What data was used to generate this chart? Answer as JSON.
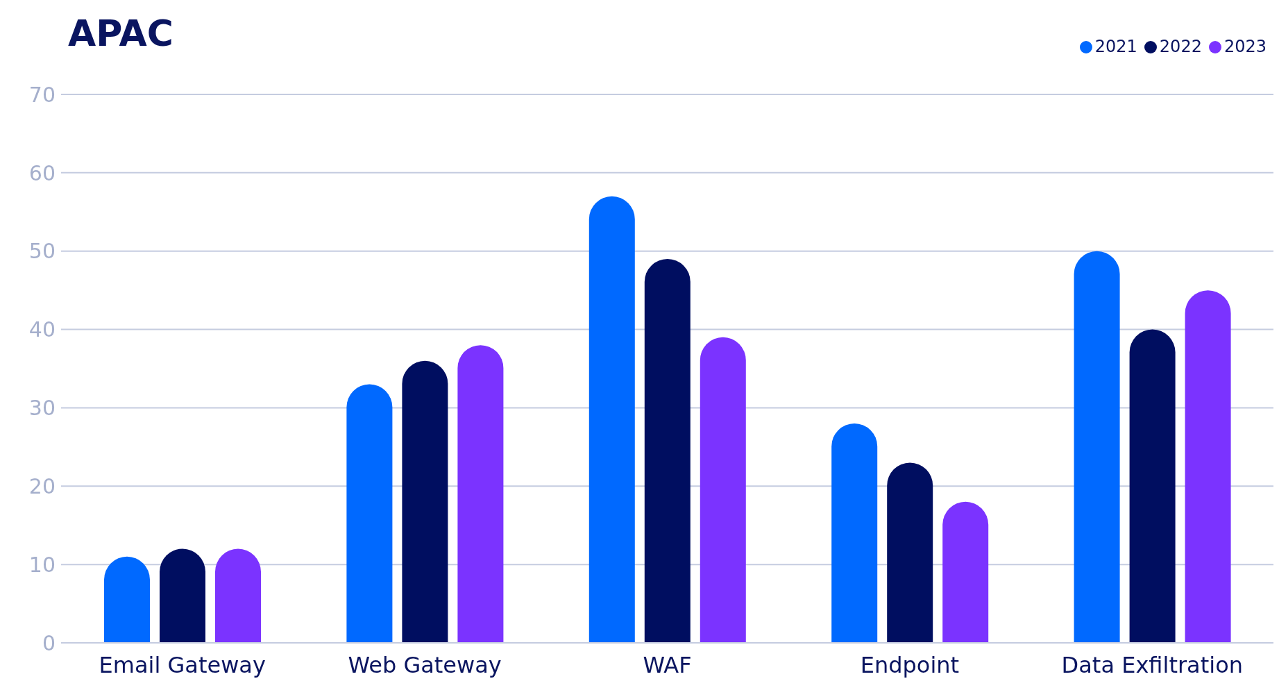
{
  "chart_data": {
    "type": "bar",
    "title": "APAC",
    "categories": [
      "Email Gateway",
      "Web Gateway",
      "WAF",
      "Endpoint",
      "Data Exfiltration"
    ],
    "series": [
      {
        "name": "2021",
        "color": "#0069ff",
        "values": [
          11,
          33,
          57,
          28,
          50
        ]
      },
      {
        "name": "2022",
        "color": "#000e60",
        "values": [
          12,
          36,
          49,
          23,
          40
        ]
      },
      {
        "name": "2023",
        "color": "#7b33ff",
        "values": [
          12,
          38,
          39,
          18,
          45
        ]
      }
    ],
    "ylim": [
      0,
      70
    ],
    "yticks": [
      0,
      10,
      20,
      30,
      40,
      50,
      60,
      70
    ],
    "grid": "y",
    "legend": "top right"
  }
}
